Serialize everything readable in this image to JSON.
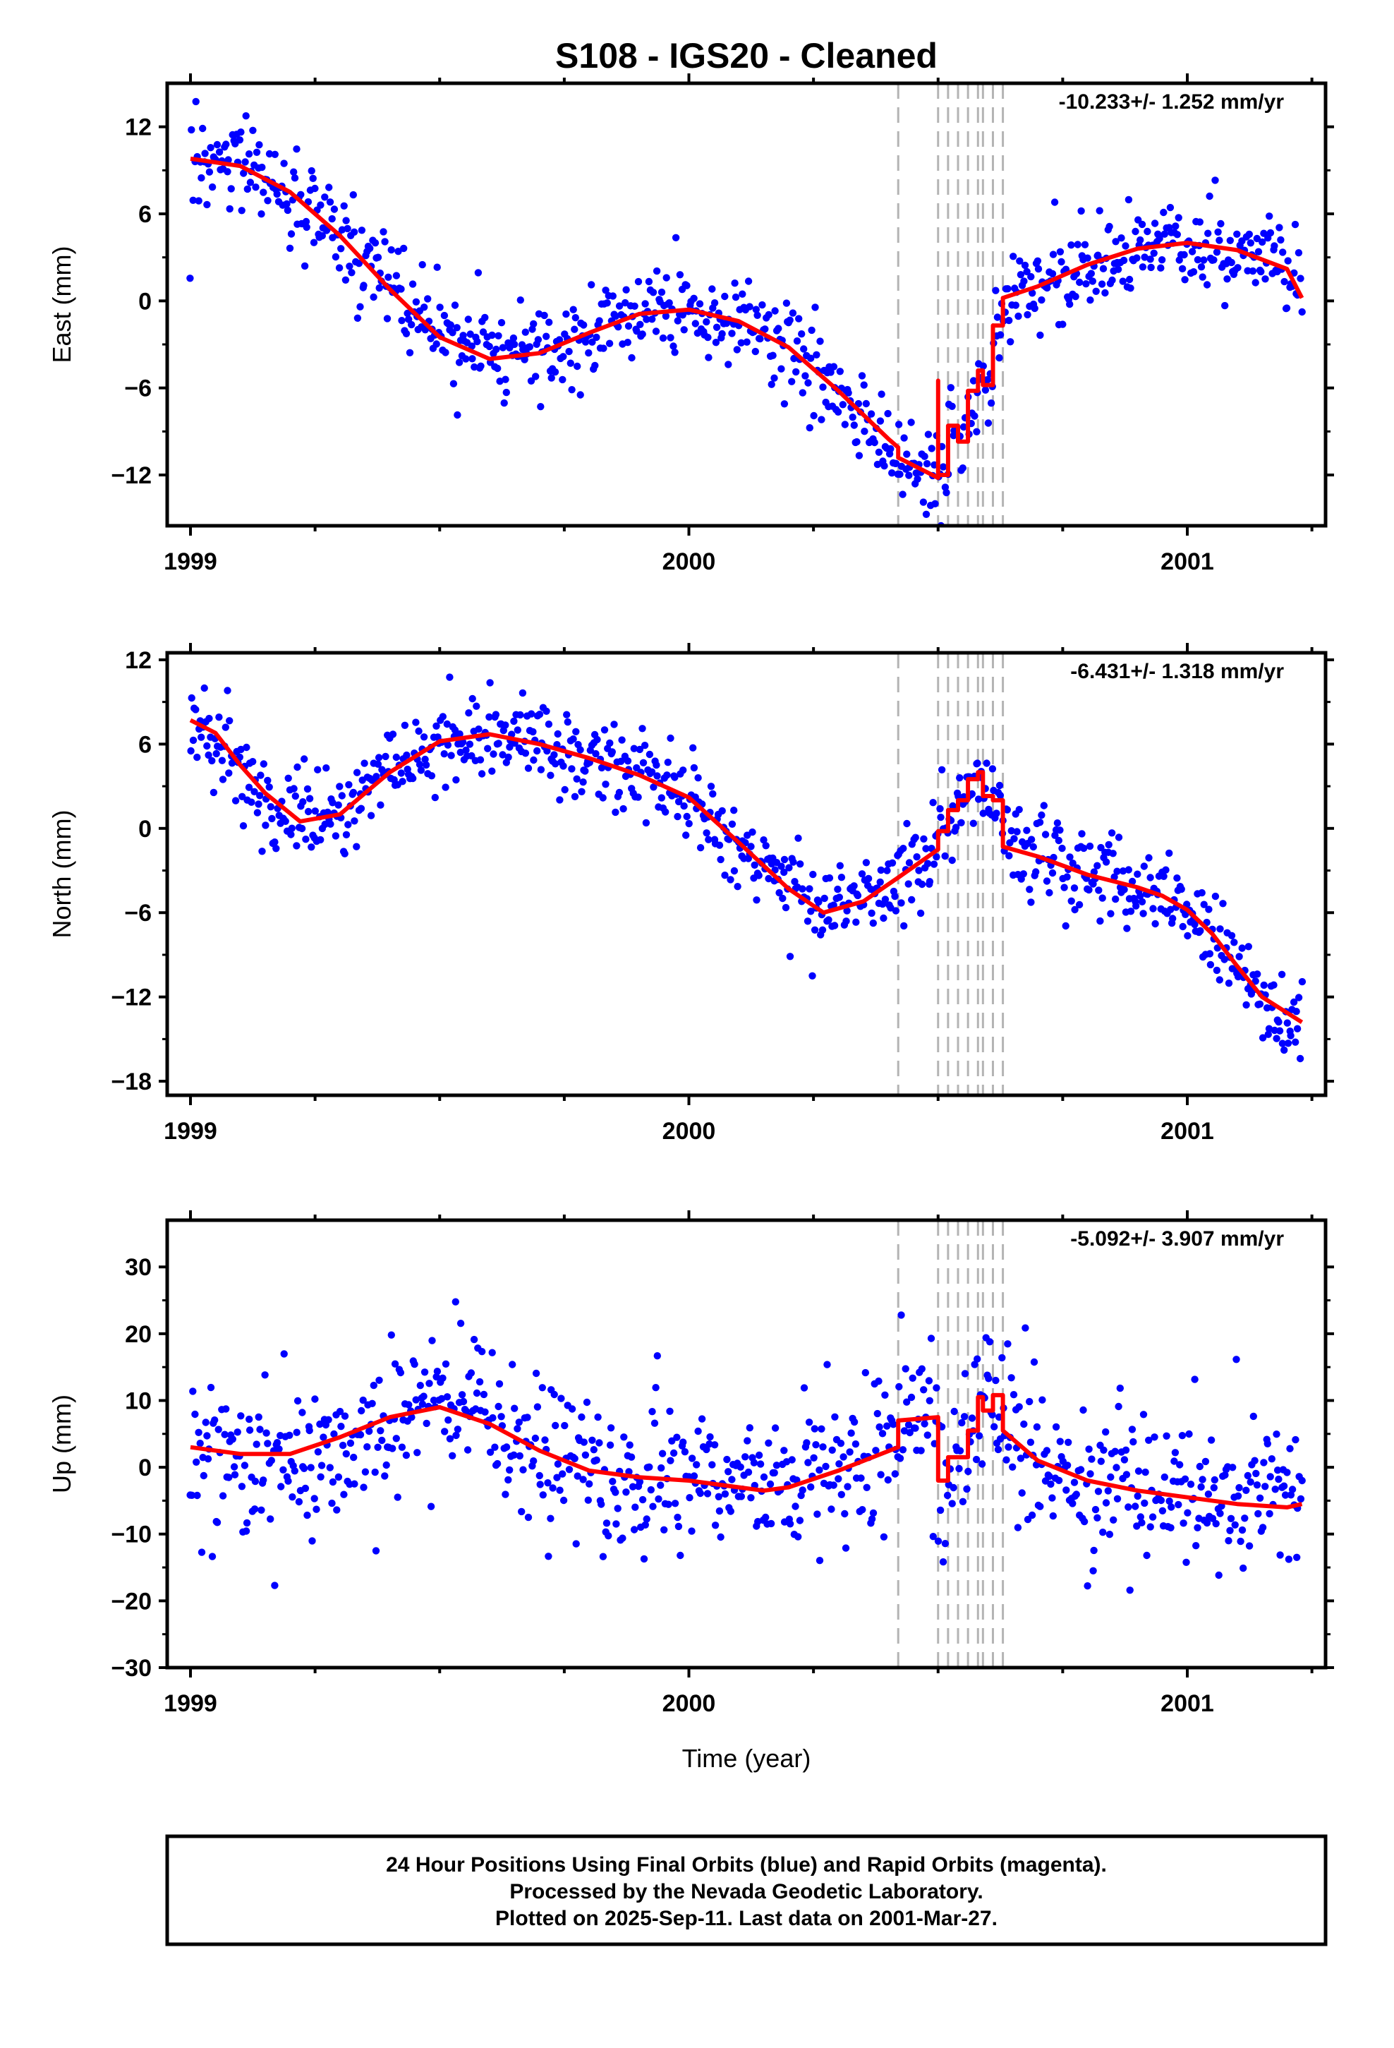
{
  "chart_data": {
    "type": "scatter",
    "title": "S108  - IGS20 - Cleaned",
    "xlabel": "Time (year)",
    "xlim": [
      1998.95,
      2001.3
    ],
    "x_ticks": [
      1999,
      2000,
      2001
    ],
    "x_tick_labels": [
      "1999",
      "2000",
      "2001"
    ],
    "event_lines_x": [
      2000.42,
      2000.5,
      2000.52,
      2000.54,
      2000.56,
      2000.58,
      2000.59,
      2000.61,
      2000.63
    ],
    "colors": {
      "points": "#0000ff",
      "model": "#ff0000",
      "event_lines": "#b4b4b4",
      "frame": "#000000"
    },
    "footer": [
      "24 Hour Positions Using Final Orbits (blue) and Rapid Orbits (magenta).",
      "Processed by the Nevada Geodetic Laboratory.",
      "Plotted on 2025-Sep-11. Last data on 2001-Mar-27."
    ],
    "panels": [
      {
        "ylabel": "East (mm)",
        "rate": "-10.233+/- 1.252 mm/yr",
        "ylim": [
          -15.5,
          15
        ],
        "y_ticks": [
          12,
          6,
          0,
          -6,
          -12
        ],
        "y_tick_labels": [
          "12",
          "6",
          "0",
          "−6",
          "−12"
        ],
        "model": [
          [
            1999.0,
            9.8
          ],
          [
            1999.1,
            9.3
          ],
          [
            1999.2,
            7.5
          ],
          [
            1999.3,
            4.5
          ],
          [
            1999.4,
            0.8
          ],
          [
            1999.5,
            -2.5
          ],
          [
            1999.6,
            -4.0
          ],
          [
            1999.7,
            -3.6
          ],
          [
            1999.8,
            -2.2
          ],
          [
            1999.9,
            -0.9
          ],
          [
            2000.0,
            -0.6
          ],
          [
            2000.1,
            -1.4
          ],
          [
            2000.2,
            -3.2
          ],
          [
            2000.3,
            -6.2
          ],
          [
            2000.4,
            -9.5
          ],
          [
            2000.42,
            -10.1
          ],
          [
            2000.42,
            -10.8
          ],
          [
            2000.5,
            -12.2
          ],
          [
            2000.5,
            -5.5
          ],
          [
            2000.5,
            -12.0
          ],
          [
            2000.52,
            -12.0
          ],
          [
            2000.52,
            -8.6
          ],
          [
            2000.54,
            -8.6
          ],
          [
            2000.54,
            -9.7
          ],
          [
            2000.56,
            -9.7
          ],
          [
            2000.56,
            -6.2
          ],
          [
            2000.58,
            -6.2
          ],
          [
            2000.58,
            -4.8
          ],
          [
            2000.59,
            -4.8
          ],
          [
            2000.59,
            -5.8
          ],
          [
            2000.61,
            -5.8
          ],
          [
            2000.61,
            -1.7
          ],
          [
            2000.63,
            -1.7
          ],
          [
            2000.63,
            0.2
          ],
          [
            2000.7,
            1.0
          ],
          [
            2000.8,
            2.5
          ],
          [
            2000.9,
            3.6
          ],
          [
            2001.0,
            4.0
          ],
          [
            2001.1,
            3.5
          ],
          [
            2001.2,
            2.2
          ],
          [
            2001.23,
            0.2
          ]
        ],
        "noise": 2.0
      },
      {
        "ylabel": "North (mm)",
        "rate": "-6.431+/- 1.318 mm/yr",
        "ylim": [
          -19,
          12.5
        ],
        "y_ticks": [
          12,
          6,
          0,
          -6,
          -12,
          -18
        ],
        "y_tick_labels": [
          "12",
          "6",
          "0",
          "−6",
          "−12",
          "−18"
        ],
        "model": [
          [
            1999.0,
            7.7
          ],
          [
            1999.05,
            6.8
          ],
          [
            1999.1,
            4.5
          ],
          [
            1999.15,
            2.5
          ],
          [
            1999.22,
            0.5
          ],
          [
            1999.3,
            1.0
          ],
          [
            1999.4,
            4.0
          ],
          [
            1999.5,
            6.2
          ],
          [
            1999.6,
            6.7
          ],
          [
            1999.7,
            6.0
          ],
          [
            1999.8,
            5.0
          ],
          [
            1999.9,
            3.8
          ],
          [
            2000.0,
            2.2
          ],
          [
            2000.1,
            -1.0
          ],
          [
            2000.2,
            -4.3
          ],
          [
            2000.27,
            -6.0
          ],
          [
            2000.35,
            -5.2
          ],
          [
            2000.42,
            -3.5
          ],
          [
            2000.5,
            -1.5
          ],
          [
            2000.5,
            -0.2
          ],
          [
            2000.52,
            -0.2
          ],
          [
            2000.52,
            1.3
          ],
          [
            2000.54,
            1.3
          ],
          [
            2000.54,
            2.0
          ],
          [
            2000.56,
            2.0
          ],
          [
            2000.56,
            3.5
          ],
          [
            2000.58,
            3.5
          ],
          [
            2000.58,
            4.0
          ],
          [
            2000.59,
            4.0
          ],
          [
            2000.59,
            2.3
          ],
          [
            2000.61,
            2.3
          ],
          [
            2000.61,
            2.0
          ],
          [
            2000.63,
            2.0
          ],
          [
            2000.63,
            -1.3
          ],
          [
            2000.7,
            -2.0
          ],
          [
            2000.8,
            -3.3
          ],
          [
            2000.9,
            -4.2
          ],
          [
            2000.95,
            -4.8
          ],
          [
            2001.0,
            -5.8
          ],
          [
            2001.05,
            -7.5
          ],
          [
            2001.1,
            -9.8
          ],
          [
            2001.15,
            -12.0
          ],
          [
            2001.23,
            -13.8
          ]
        ],
        "noise": 2.0
      },
      {
        "ylabel": "Up (mm)",
        "rate": "-5.092+/- 3.907 mm/yr",
        "ylim": [
          -30,
          37
        ],
        "y_ticks": [
          30,
          20,
          10,
          0,
          -10,
          -20,
          -30
        ],
        "y_tick_labels": [
          "30",
          "20",
          "10",
          "0",
          "−10",
          "−20",
          "−30"
        ],
        "model": [
          [
            1999.0,
            3.0
          ],
          [
            1999.1,
            2.0
          ],
          [
            1999.2,
            2.0
          ],
          [
            1999.3,
            4.5
          ],
          [
            1999.4,
            7.5
          ],
          [
            1999.5,
            9.0
          ],
          [
            1999.6,
            6.5
          ],
          [
            1999.7,
            2.5
          ],
          [
            1999.8,
            -0.5
          ],
          [
            1999.9,
            -1.5
          ],
          [
            2000.0,
            -2.0
          ],
          [
            2000.1,
            -3.0
          ],
          [
            2000.15,
            -3.5
          ],
          [
            2000.2,
            -3.0
          ],
          [
            2000.3,
            -0.5
          ],
          [
            2000.42,
            3.0
          ],
          [
            2000.42,
            7.0
          ],
          [
            2000.5,
            7.5
          ],
          [
            2000.5,
            -2.0
          ],
          [
            2000.52,
            -2.0
          ],
          [
            2000.52,
            1.5
          ],
          [
            2000.54,
            1.5
          ],
          [
            2000.54,
            1.5
          ],
          [
            2000.56,
            1.5
          ],
          [
            2000.56,
            5.5
          ],
          [
            2000.58,
            5.5
          ],
          [
            2000.58,
            10.5
          ],
          [
            2000.59,
            10.5
          ],
          [
            2000.59,
            8.5
          ],
          [
            2000.61,
            8.5
          ],
          [
            2000.61,
            10.8
          ],
          [
            2000.63,
            10.8
          ],
          [
            2000.63,
            5.5
          ],
          [
            2000.7,
            1.0
          ],
          [
            2000.8,
            -2.0
          ],
          [
            2000.9,
            -3.5
          ],
          [
            2001.0,
            -4.5
          ],
          [
            2001.1,
            -5.5
          ],
          [
            2001.2,
            -6.0
          ],
          [
            2001.23,
            -5.5
          ]
        ],
        "noise": 7.0
      }
    ]
  }
}
